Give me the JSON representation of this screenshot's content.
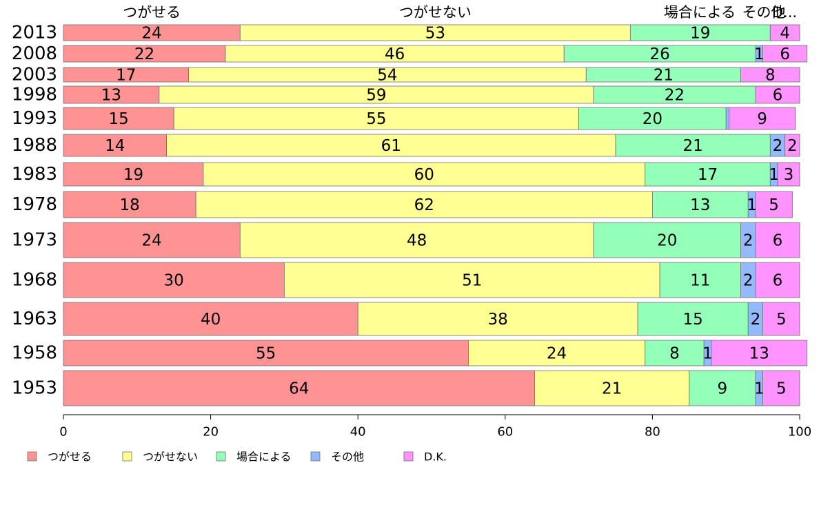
{
  "chart_data": {
    "type": "bar",
    "orientation": "horizontal",
    "stacked": true,
    "title": "",
    "xlabel": "",
    "ylabel": "",
    "xlim": [
      0,
      100
    ],
    "x_ticks": [
      0,
      20,
      40,
      60,
      80,
      100
    ],
    "categories": [
      "2013",
      "2008",
      "2003",
      "1998",
      "1993",
      "1988",
      "1983",
      "1978",
      "1973",
      "1968",
      "1963",
      "1958",
      "1953"
    ],
    "series": [
      {
        "name": "つがせる",
        "color": "#ff9393",
        "values": [
          24,
          22,
          17,
          13,
          15,
          14,
          19,
          18,
          24,
          30,
          40,
          55,
          64
        ]
      },
      {
        "name": "つがせない",
        "color": "#ffff93",
        "values": [
          53,
          46,
          54,
          59,
          55,
          61,
          60,
          62,
          48,
          51,
          38,
          24,
          21
        ]
      },
      {
        "name": "場合による",
        "color": "#93ffb9",
        "values": [
          19,
          26,
          21,
          22,
          20,
          21,
          17,
          13,
          20,
          11,
          15,
          8,
          9
        ]
      },
      {
        "name": "その他",
        "color": "#93b9ff",
        "values": [
          0,
          1,
          0,
          0,
          0.4,
          2,
          1,
          1,
          2,
          2,
          2,
          1,
          1
        ]
      },
      {
        "name": "D.K.",
        "color": "#ff93ff",
        "values": [
          4,
          6,
          8,
          6,
          9,
          2,
          3,
          5,
          6,
          6,
          5,
          13,
          5
        ]
      }
    ],
    "segment_labels": [
      [
        "24",
        "53",
        "19",
        "",
        "4"
      ],
      [
        "22",
        "46",
        "26",
        "1",
        "6"
      ],
      [
        "17",
        "54",
        "21",
        "",
        "8"
      ],
      [
        "13",
        "59",
        "22",
        "",
        "6"
      ],
      [
        "15",
        "55",
        "20",
        "",
        "9"
      ],
      [
        "14",
        "61",
        "21",
        "2",
        "2"
      ],
      [
        "19",
        "60",
        "17",
        "1",
        "3"
      ],
      [
        "18",
        "62",
        "13",
        "1",
        "5"
      ],
      [
        "24",
        "48",
        "20",
        "2",
        "6"
      ],
      [
        "30",
        "51",
        "11",
        "2",
        "6"
      ],
      [
        "40",
        "38",
        "15",
        "2",
        "5"
      ],
      [
        "55",
        "24",
        "8",
        "1",
        "13"
      ],
      [
        "64",
        "21",
        "9",
        "1",
        "5"
      ]
    ],
    "top_labels": [
      "つがせる",
      "つがせない",
      "場合による",
      "その他",
      "D..."
    ],
    "legend": {
      "position": "bottom-left",
      "entries": [
        "つがせる",
        "つがせない",
        "場合による",
        "その他",
        "D.K."
      ]
    }
  }
}
